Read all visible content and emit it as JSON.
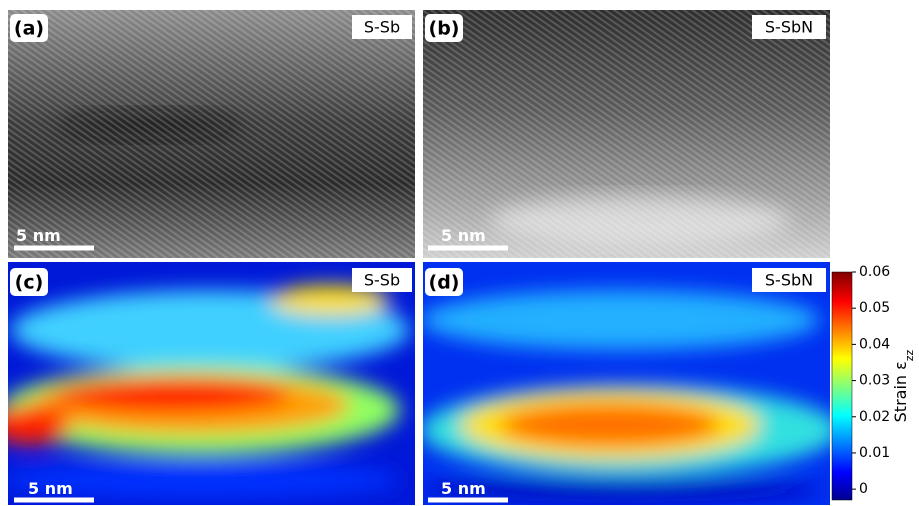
{
  "panels": [
    {
      "label": "(a)",
      "tag": "S-Sb",
      "scalebar": "5 nm"
    },
    {
      "label": "(b)",
      "tag": "S-SbN",
      "scalebar": "5 nm"
    },
    {
      "label": "(c)",
      "tag": "S-Sb",
      "scalebar": "5 nm"
    },
    {
      "label": "(d)",
      "tag": "S-SbN",
      "scalebar": "5 nm"
    }
  ],
  "colorbar": {
    "label": "Strain ε",
    "label_subscript": "zz",
    "lim": [
      -0.003,
      0.06
    ],
    "ticks": [
      0,
      0.01,
      0.02,
      0.03,
      0.04,
      0.05,
      0.06
    ]
  }
}
